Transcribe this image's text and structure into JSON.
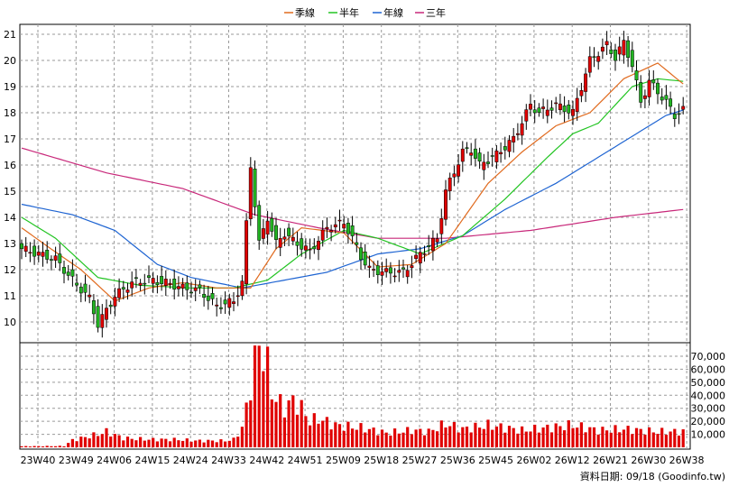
{
  "footer": {
    "date_label": "資料日期: 09/18",
    "source": "(Goodinfo.tw)"
  },
  "chart_data": {
    "type": "candlestick",
    "legend": [
      {
        "name": "季線",
        "color": "#e06a1e"
      },
      {
        "name": "半年",
        "color": "#22c422"
      },
      {
        "name": "年線",
        "color": "#1e64d2"
      },
      {
        "name": "三年",
        "color": "#c8287a"
      }
    ],
    "legend_placement": "top-center",
    "grid": true,
    "price_ylim": [
      9.5,
      21.3
    ],
    "price_ticks": [
      10,
      11,
      12,
      13,
      14,
      15,
      16,
      17,
      18,
      19,
      20,
      21
    ],
    "volume_ylim": [
      0,
      80000
    ],
    "volume_ticks": [
      {
        "v": 10000,
        "label": "10,000"
      },
      {
        "v": 20000,
        "label": "20,000"
      },
      {
        "v": 30000,
        "label": "30,000"
      },
      {
        "v": 40000,
        "label": "40,000"
      },
      {
        "v": 50000,
        "label": "50,000"
      },
      {
        "v": 60000,
        "label": "60,000"
      },
      {
        "v": 70000,
        "label": "70,000"
      }
    ],
    "x_ticks": [
      "23W40",
      "23W49",
      "24W06",
      "24W15",
      "24W24",
      "24W33",
      "24W42",
      "24W51",
      "25W09",
      "25W18",
      "25W27",
      "25W36",
      "25W45",
      "26W02",
      "26W12",
      "26W21",
      "26W30",
      "26W38"
    ],
    "ma_3y_anchors": [
      [
        0,
        16.65
      ],
      [
        20,
        15.7
      ],
      [
        38,
        15.1
      ],
      [
        55,
        14.1
      ],
      [
        70,
        13.6
      ],
      [
        84,
        13.2
      ],
      [
        100,
        13.2
      ],
      [
        120,
        13.5
      ],
      [
        140,
        14.0
      ],
      [
        156,
        14.3
      ]
    ],
    "ma_1y_anchors": [
      [
        0,
        14.5
      ],
      [
        12,
        14.1
      ],
      [
        22,
        13.5
      ],
      [
        32,
        12.2
      ],
      [
        40,
        11.7
      ],
      [
        52,
        11.3
      ],
      [
        62,
        11.6
      ],
      [
        72,
        11.9
      ],
      [
        84,
        12.6
      ],
      [
        94,
        12.8
      ],
      [
        104,
        13.3
      ],
      [
        114,
        14.3
      ],
      [
        126,
        15.3
      ],
      [
        136,
        16.3
      ],
      [
        146,
        17.3
      ],
      [
        152,
        17.9
      ],
      [
        156,
        18.1
      ]
    ],
    "ma_half_anchors": [
      [
        0,
        14.0
      ],
      [
        8,
        13.2
      ],
      [
        18,
        11.7
      ],
      [
        28,
        11.4
      ],
      [
        40,
        11.3
      ],
      [
        50,
        11.3
      ],
      [
        58,
        11.6
      ],
      [
        66,
        12.6
      ],
      [
        76,
        13.5
      ],
      [
        84,
        13.2
      ],
      [
        94,
        12.6
      ],
      [
        104,
        13.3
      ],
      [
        114,
        14.7
      ],
      [
        124,
        16.3
      ],
      [
        130,
        17.2
      ],
      [
        136,
        17.6
      ],
      [
        144,
        19.0
      ],
      [
        150,
        19.3
      ],
      [
        156,
        19.2
      ]
    ],
    "ma_qtr_anchors": [
      [
        0,
        13.6
      ],
      [
        6,
        12.9
      ],
      [
        14,
        12.0
      ],
      [
        22,
        10.8
      ],
      [
        30,
        11.3
      ],
      [
        38,
        11.5
      ],
      [
        46,
        11.3
      ],
      [
        54,
        11.3
      ],
      [
        60,
        12.8
      ],
      [
        66,
        13.6
      ],
      [
        76,
        13.4
      ],
      [
        84,
        12.1
      ],
      [
        92,
        12.2
      ],
      [
        100,
        13.0
      ],
      [
        110,
        15.3
      ],
      [
        118,
        16.5
      ],
      [
        126,
        17.5
      ],
      [
        134,
        18.0
      ],
      [
        142,
        19.3
      ],
      [
        150,
        19.9
      ],
      [
        156,
        19.1
      ]
    ],
    "close_anchors": [
      [
        0,
        12.8
      ],
      [
        4,
        12.6
      ],
      [
        8,
        12.4
      ],
      [
        12,
        11.6
      ],
      [
        16,
        10.9
      ],
      [
        18,
        9.9
      ],
      [
        22,
        11.0
      ],
      [
        26,
        11.5
      ],
      [
        30,
        11.6
      ],
      [
        34,
        11.5
      ],
      [
        38,
        11.3
      ],
      [
        42,
        11.2
      ],
      [
        46,
        10.6
      ],
      [
        50,
        10.8
      ],
      [
        52,
        11.5
      ],
      [
        54,
        16.0
      ],
      [
        56,
        13.0
      ],
      [
        58,
        14.0
      ],
      [
        60,
        13.0
      ],
      [
        62,
        13.4
      ],
      [
        64,
        13.1
      ],
      [
        68,
        12.7
      ],
      [
        72,
        13.6
      ],
      [
        76,
        13.8
      ],
      [
        78,
        13.2
      ],
      [
        80,
        12.5
      ],
      [
        82,
        12.0
      ],
      [
        86,
        11.9
      ],
      [
        90,
        11.9
      ],
      [
        94,
        12.6
      ],
      [
        98,
        13.2
      ],
      [
        100,
        15.0
      ],
      [
        104,
        16.5
      ],
      [
        106,
        16.6
      ],
      [
        108,
        16.0
      ],
      [
        112,
        16.4
      ],
      [
        116,
        17.0
      ],
      [
        120,
        18.3
      ],
      [
        122,
        18.0
      ],
      [
        126,
        18.3
      ],
      [
        130,
        18.0
      ],
      [
        132,
        19.0
      ],
      [
        134,
        20.0
      ],
      [
        136,
        20.3
      ],
      [
        138,
        20.6
      ],
      [
        140,
        20.1
      ],
      [
        142,
        20.7
      ],
      [
        144,
        19.8
      ],
      [
        146,
        18.4
      ],
      [
        148,
        19.2
      ],
      [
        150,
        18.8
      ],
      [
        152,
        18.4
      ],
      [
        154,
        17.9
      ],
      [
        156,
        18.1
      ]
    ],
    "volume_anchors": [
      [
        0,
        800
      ],
      [
        10,
        1000
      ],
      [
        12,
        5500
      ],
      [
        18,
        10000
      ],
      [
        20,
        12000
      ],
      [
        24,
        7000
      ],
      [
        30,
        6000
      ],
      [
        36,
        6000
      ],
      [
        42,
        5000
      ],
      [
        48,
        5000
      ],
      [
        50,
        6000
      ],
      [
        52,
        15000
      ],
      [
        53,
        30000
      ],
      [
        54,
        48000
      ],
      [
        55,
        66000
      ],
      [
        56,
        78000
      ],
      [
        57,
        72000
      ],
      [
        58,
        62000
      ],
      [
        59,
        43000
      ],
      [
        60,
        37000
      ],
      [
        62,
        30000
      ],
      [
        64,
        36000
      ],
      [
        66,
        30000
      ],
      [
        68,
        20000
      ],
      [
        70,
        22000
      ],
      [
        74,
        17000
      ],
      [
        80,
        15000
      ],
      [
        86,
        11000
      ],
      [
        92,
        13000
      ],
      [
        96,
        12000
      ],
      [
        100,
        18000
      ],
      [
        104,
        14000
      ],
      [
        110,
        17000
      ],
      [
        118,
        13000
      ],
      [
        124,
        15000
      ],
      [
        130,
        17000
      ],
      [
        136,
        13000
      ],
      [
        142,
        14000
      ],
      [
        150,
        12000
      ],
      [
        156,
        12000
      ]
    ]
  }
}
